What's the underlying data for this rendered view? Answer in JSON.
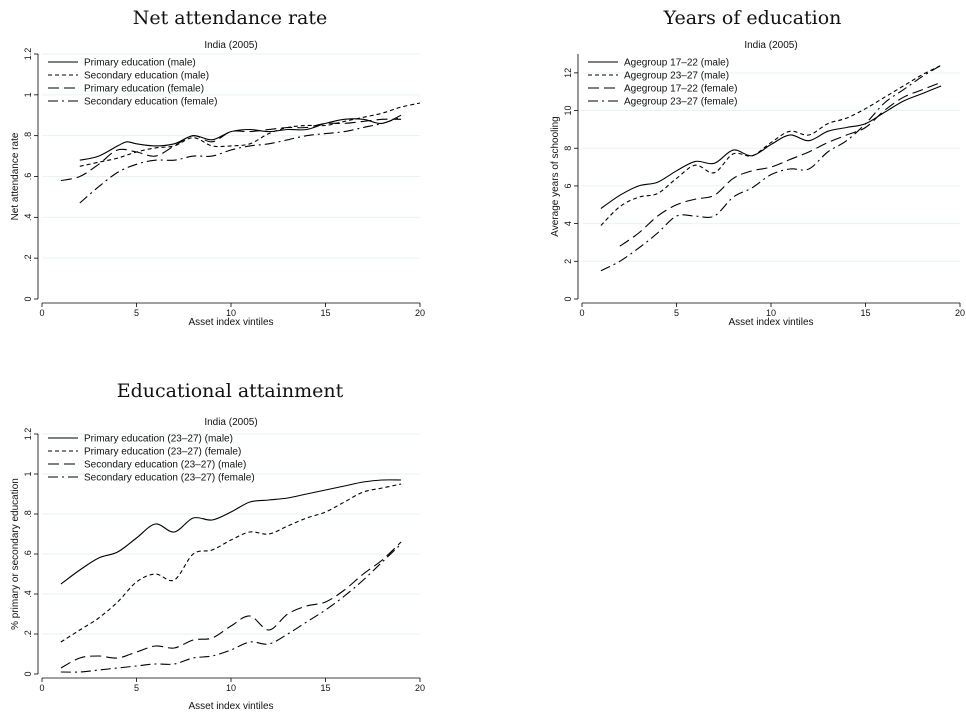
{
  "chart_data": [
    {
      "type": "line",
      "title": "Net attendance rate",
      "subtitle": "India (2005)",
      "xlabel": "Asset index vintiles",
      "ylabel": "Net attendance rate",
      "xlim": [
        0,
        20
      ],
      "ylim": [
        0,
        1.2
      ],
      "xticks": [
        0,
        5,
        10,
        15,
        20
      ],
      "yticks": [
        0,
        0.2,
        0.4,
        0.6,
        0.8,
        1,
        1.2
      ],
      "ytick_labels": [
        "0",
        ".2",
        ".4",
        ".6",
        ".8",
        "1",
        "1.2"
      ],
      "legend_position": "top-left",
      "grid": true,
      "series": [
        {
          "name": "Primary education (male)",
          "dash": "solid",
          "x": [
            2,
            3,
            4,
            4.5,
            5,
            6,
            7,
            8,
            9,
            10,
            11,
            12,
            13,
            14,
            15,
            16,
            17,
            18,
            19
          ],
          "y": [
            0.68,
            0.7,
            0.75,
            0.77,
            0.76,
            0.75,
            0.76,
            0.8,
            0.78,
            0.82,
            0.83,
            0.82,
            0.83,
            0.83,
            0.86,
            0.88,
            0.88,
            0.86,
            0.9
          ]
        },
        {
          "name": "Secondary education (male)",
          "dash": "short",
          "x": [
            2,
            3,
            4,
            5,
            6,
            7,
            8,
            9,
            10,
            11,
            12,
            13,
            14,
            15,
            16,
            17,
            18,
            19,
            20
          ],
          "y": [
            0.65,
            0.67,
            0.69,
            0.72,
            0.74,
            0.75,
            0.79,
            0.75,
            0.75,
            0.76,
            0.81,
            0.84,
            0.85,
            0.85,
            0.87,
            0.89,
            0.91,
            0.94,
            0.96
          ]
        },
        {
          "name": "Primary education (female)",
          "dash": "long",
          "x": [
            1,
            2,
            3,
            4,
            5,
            6,
            7,
            8,
            9,
            10,
            11,
            12,
            13,
            14,
            15,
            16,
            17,
            18,
            19
          ],
          "y": [
            0.58,
            0.6,
            0.66,
            0.73,
            0.72,
            0.7,
            0.75,
            0.8,
            0.77,
            0.82,
            0.82,
            0.83,
            0.84,
            0.84,
            0.86,
            0.86,
            0.87,
            0.88,
            0.88
          ]
        },
        {
          "name": "Secondary education (female)",
          "dash": "dashdot",
          "x": [
            2,
            3,
            4,
            5,
            6,
            7,
            8,
            9,
            10,
            11,
            12,
            13,
            14,
            15,
            16,
            17,
            18,
            19
          ],
          "y": [
            0.47,
            0.55,
            0.62,
            0.66,
            0.68,
            0.68,
            0.7,
            0.7,
            0.73,
            0.75,
            0.76,
            0.78,
            0.8,
            0.81,
            0.82,
            0.84,
            0.86,
            0.89
          ]
        }
      ]
    },
    {
      "type": "line",
      "title": "Years of education",
      "subtitle": "India (2005)",
      "xlabel": "Asset index vintiles",
      "ylabel": "Average years of schooling",
      "xlim": [
        0,
        20
      ],
      "ylim": [
        0,
        13
      ],
      "xticks": [
        0,
        5,
        10,
        15,
        20
      ],
      "yticks": [
        0,
        2,
        4,
        6,
        8,
        10,
        12
      ],
      "ytick_labels": [
        "0",
        "2",
        "4",
        "6",
        "8",
        "10",
        "12"
      ],
      "legend_position": "top-left",
      "grid": true,
      "series": [
        {
          "name": "Agegroup 17–22 (male)",
          "dash": "solid",
          "x": [
            1,
            2,
            3,
            4,
            5,
            6,
            7,
            8,
            9,
            10,
            11,
            12,
            13,
            14,
            15,
            16,
            17,
            18,
            19
          ],
          "y": [
            4.8,
            5.5,
            6.0,
            6.2,
            6.8,
            7.3,
            7.2,
            7.9,
            7.6,
            8.2,
            8.7,
            8.4,
            8.9,
            9.1,
            9.3,
            9.9,
            10.5,
            10.9,
            11.3
          ]
        },
        {
          "name": "Agegroup 23–27 (male)",
          "dash": "short",
          "x": [
            1,
            2,
            3,
            4,
            5,
            6,
            7,
            8,
            9,
            10,
            11,
            12,
            13,
            14,
            15,
            16,
            17,
            18,
            19
          ],
          "y": [
            3.9,
            4.9,
            5.4,
            5.6,
            6.4,
            7.1,
            6.7,
            7.7,
            7.6,
            8.3,
            8.9,
            8.7,
            9.3,
            9.6,
            10.1,
            10.7,
            11.3,
            11.9,
            12.4
          ]
        },
        {
          "name": "Agegroup 17–22 (female)",
          "dash": "long",
          "x": [
            2,
            3,
            4,
            5,
            6,
            7,
            8,
            9,
            10,
            11,
            12,
            13,
            14,
            15,
            16,
            17,
            18,
            19
          ],
          "y": [
            2.8,
            3.5,
            4.4,
            5.0,
            5.3,
            5.5,
            6.4,
            6.8,
            7.0,
            7.4,
            7.8,
            8.3,
            8.7,
            9.1,
            10.0,
            10.7,
            11.1,
            11.5
          ]
        },
        {
          "name": "Agegroup 23–27 (female)",
          "dash": "dashdot",
          "x": [
            1,
            2,
            3,
            4,
            5,
            6,
            7,
            8,
            9,
            10,
            11,
            12,
            13,
            14,
            15,
            16,
            17,
            18,
            19
          ],
          "y": [
            1.5,
            2.0,
            2.7,
            3.5,
            4.4,
            4.4,
            4.4,
            5.4,
            5.9,
            6.6,
            6.9,
            6.9,
            7.8,
            8.4,
            9.3,
            10.4,
            11.1,
            11.8,
            12.4
          ]
        }
      ]
    },
    {
      "type": "line",
      "title": "Educational attainment",
      "subtitle": "India (2005)",
      "xlabel": "Asset index vintiles",
      "ylabel": "% primary or secondary education",
      "xlim": [
        0,
        20
      ],
      "ylim": [
        0,
        1.2
      ],
      "xticks": [
        0,
        5,
        10,
        15,
        20
      ],
      "yticks": [
        0,
        0.2,
        0.4,
        0.6,
        0.8,
        1,
        1.2
      ],
      "ytick_labels": [
        "0",
        ".2",
        ".4",
        ".6",
        ".8",
        "1",
        "1.2"
      ],
      "legend_position": "top-left",
      "grid": true,
      "series": [
        {
          "name": "Primary education (23–27) (male)",
          "dash": "solid",
          "x": [
            1,
            2,
            3,
            4,
            5,
            6,
            7,
            8,
            9,
            10,
            11,
            12,
            13,
            14,
            15,
            16,
            17,
            18,
            19
          ],
          "y": [
            0.45,
            0.52,
            0.58,
            0.61,
            0.68,
            0.75,
            0.71,
            0.78,
            0.77,
            0.81,
            0.86,
            0.87,
            0.88,
            0.9,
            0.92,
            0.94,
            0.96,
            0.97,
            0.97
          ]
        },
        {
          "name": "Primary education (23–27) (female)",
          "dash": "short",
          "x": [
            1,
            2,
            3,
            4,
            5,
            6,
            7,
            8,
            9,
            10,
            11,
            12,
            13,
            14,
            15,
            16,
            17,
            18,
            19
          ],
          "y": [
            0.16,
            0.22,
            0.28,
            0.36,
            0.46,
            0.5,
            0.47,
            0.6,
            0.62,
            0.67,
            0.71,
            0.7,
            0.74,
            0.78,
            0.81,
            0.86,
            0.91,
            0.93,
            0.95
          ]
        },
        {
          "name": "Secondary education (23–27) (male)",
          "dash": "long",
          "x": [
            1,
            2,
            3,
            4,
            5,
            6,
            7,
            8,
            9,
            10,
            11,
            12,
            13,
            14,
            15,
            16,
            17,
            18,
            19
          ],
          "y": [
            0.03,
            0.08,
            0.09,
            0.08,
            0.11,
            0.14,
            0.13,
            0.17,
            0.18,
            0.24,
            0.29,
            0.22,
            0.3,
            0.34,
            0.36,
            0.42,
            0.5,
            0.57,
            0.66
          ]
        },
        {
          "name": "Secondary education (23–27) (female)",
          "dash": "dashdot",
          "x": [
            1,
            2,
            3,
            4,
            5,
            6,
            7,
            8,
            9,
            10,
            11,
            12,
            13,
            14,
            15,
            16,
            17,
            18,
            19
          ],
          "y": [
            0.01,
            0.01,
            0.02,
            0.03,
            0.04,
            0.05,
            0.05,
            0.08,
            0.09,
            0.12,
            0.16,
            0.15,
            0.2,
            0.26,
            0.32,
            0.39,
            0.47,
            0.56,
            0.65
          ]
        }
      ]
    }
  ]
}
